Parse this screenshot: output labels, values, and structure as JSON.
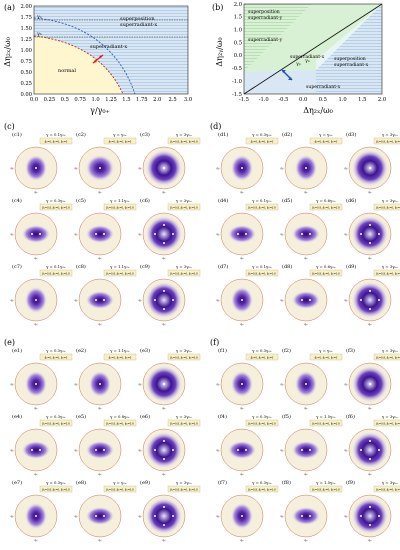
{
  "panel_a": {
    "label": "(a)",
    "ylabel": "Δη₂ₓ/ω₀",
    "xlabel": "γ/γ₀₊",
    "xticks": [
      "0.0",
      "0.25",
      "0.5",
      "0.75",
      "1.0",
      "1.25",
      "1.5",
      "1.75",
      "2.0",
      "2.5",
      "3.0"
    ],
    "yticks": [
      "0.00",
      "0.25",
      "0.50",
      "0.75",
      "1.00",
      "1.25",
      "1.50",
      "1.75",
      "2.00"
    ],
    "regions": {
      "normal": "normal",
      "superradiant": "superradiant-x",
      "superposition": "superposition",
      "superposition_x": "superradiant-x"
    },
    "markers": {
      "gamma_p": "γₚ",
      "gamma_n": "γₙ"
    }
  },
  "panel_b": {
    "label": "(b)",
    "ylabel": "Δη₂ᵧ/ω₀",
    "xlabel": "Δη₂ₓ/ω₀",
    "xticks": [
      "-1.5",
      "-1.0",
      "-0.5",
      "0.0",
      "0.5",
      "1.0",
      "1.5",
      "2.0"
    ],
    "yticks": [
      "-1.5",
      "-1.0",
      "-0.5",
      "0.0",
      "0.5",
      "1.0",
      "1.5",
      "2.0"
    ],
    "regions": {
      "tl_1": "superposition",
      "tl_2": "superradiant-y",
      "mid_1": "superradiant-y",
      "c_1": "superradiant-x",
      "c_2": "γₚ",
      "c_3": "γₙ",
      "r_1": "superposition",
      "r_2": "superradiant-x",
      "bot": "superradiant-x"
    }
  },
  "groups": [
    {
      "label": "(c)",
      "prefix": "c",
      "gammas": [
        "γ = 0.1γ₀₊",
        "γ = γ₀₊",
        "γ = 3γ₀₊",
        "γ = 0.3γ₀₊",
        "γ = 1.1γ₀₊",
        "γ = 3γ₀₊",
        "γ = 0.1γ₀₊",
        "γ = 1.1γ₀₊",
        "γ = 3γ₀₊"
      ],
      "params": [
        "βₓ=0, βₓ=0, βₓ=0",
        "βₓ=0, βₓ=0, βₓ=0",
        "βₓ=0.8, βₓ=0, βₓ=0.8",
        "βₓ=0.8, βₓ=0, βₓ=0.8",
        "βₓ=0.8, βₓ=0, βₓ=0.8",
        "βₓ=0.8, βₓ=0, βₓ=0.8",
        "βₓ=0.8, βₓ=0, βₓ=0.8",
        "βₓ=0.8, βₓ=0, βₓ=0.8",
        "βₓ=0.8, βₓ=0, βₓ=0.8"
      ]
    },
    {
      "label": "(d)",
      "prefix": "d",
      "gammas": [
        "γ = 0.3γ₀₊",
        "γ = γ₀₊",
        "γ = 3γ₀₊",
        "γ = 0.1γ₀₊",
        "γ = 0.6γ₀₊",
        "γ = 3γ₀₊",
        "γ = 0.1γ₀₊",
        "γ = 0.6γ₀₊",
        "γ = 3γ₀₊"
      ],
      "params": [
        "βₓ=0, βₓ=0, βₓ=0",
        "βₓ=0, βₓ=0, βₓ=0",
        "βₓ=0.8, βₓ=0, βₓ=0.8",
        "βₓ=0.8, βₓ=0, βₓ=0.8",
        "βₓ=0.8, βₓ=0, βₓ=0.8",
        "βₓ=0.8, βₓ=0, βₓ=0.8",
        "βₓ=0.8, βₓ=0, βₓ=0.8",
        "βₓ=0.8, βₓ=0, βₓ=0.8",
        "βₓ=0.8, βₓ=0, βₓ=0.8"
      ]
    },
    {
      "label": "(e)",
      "prefix": "e",
      "gammas": [
        "γ = 0.3γ₀₊",
        "γ = 1.1γ₀₊",
        "γ = 3γ₀₊",
        "γ = 0.3γ₀₊",
        "γ = 0.8γ₀₊",
        "γ = 3γ₀₊",
        "γ = 0.3γ₀₊",
        "γ = γ₀₊",
        "γ = 3γ₀₊"
      ],
      "params": [
        "βₓ=0, βₓ=0, βₓ=0",
        "βₓ=0, βₓ=0, βₓ=0",
        "βₓ=0.8, βₓ=0, βₓ=0.8",
        "βₓ=0.8, βₓ=0, βₓ=0.8",
        "βₓ=0.8, βₓ=0, βₓ=0.8",
        "βₓ=0.8, βₓ=0, βₓ=0.8",
        "βₓ=0.8, βₓ=0, βₓ=0.8",
        "βₓ=0.8, βₓ=0, βₓ=0.8",
        "βₓ=0.8, βₓ=0, βₓ=0.8"
      ]
    },
    {
      "label": "(f)",
      "prefix": "f",
      "gammas": [
        "γ = 0.3γ₀₊",
        "γ = γ₀₊",
        "γ = 3γ₀₊",
        "γ = 0.3γ₀₊",
        "γ = 1.5γ₀₊",
        "γ = 3γ₀₊",
        "γ = 0.3γ₀₊",
        "γ = 1.5γ₀₊",
        "γ = 3γ₀₊"
      ],
      "params": [
        "βₓ=0, βₓ=0, βₓ=0",
        "βₓ=0, βₓ=0, βₓ=0",
        "βₓ=0.8, βₓ=0, βₓ=0.8",
        "βₓ=0.8, βₓ=0, βₓ=0.8",
        "βₓ=0.8, βₓ=0, βₓ=0.8",
        "βₓ=0.8, βₓ=0, βₓ=0.8",
        "βₓ=0.8, βₓ=0, βₓ=0.8",
        "βₓ=0.8, βₓ=0, βₓ=0.8",
        "βₓ=0.8, βₓ=0, βₓ=0.8"
      ]
    }
  ]
}
